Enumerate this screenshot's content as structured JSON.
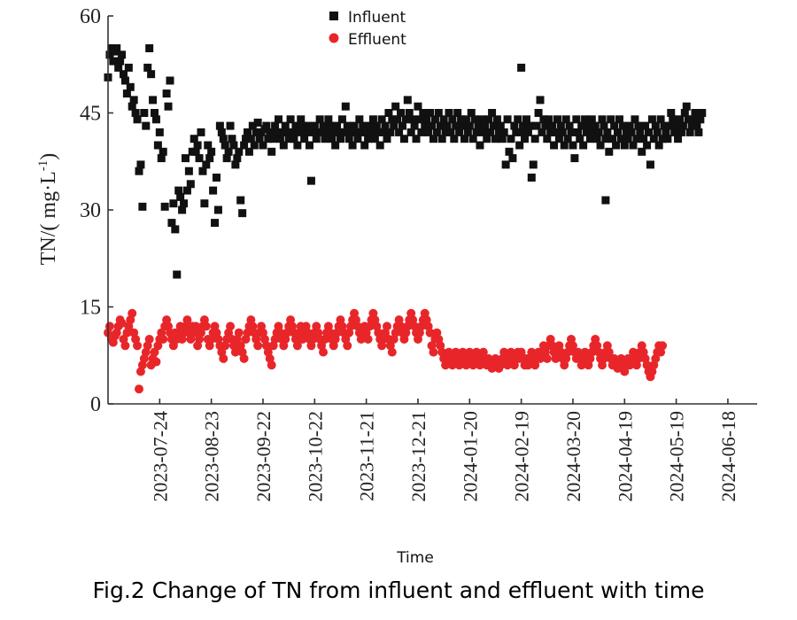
{
  "chart_data": {
    "type": "scatter",
    "title": "",
    "caption": "Fig.2 Change of TN from influent and effluent with time",
    "xlabel": "Time",
    "ylabel_main": "TN/( mg·L",
    "ylabel_exp": "-1",
    "ylabel_close": ")",
    "ylim": [
      0,
      60
    ],
    "yticks": [
      0,
      15,
      30,
      45,
      60
    ],
    "x_start": "2023-06-24",
    "x_end": "2024-07-05",
    "xticks": [
      "2023-07-24",
      "2023-08-23",
      "2023-09-22",
      "2023-10-22",
      "2023-11-21",
      "2023-12-21",
      "2024-01-20",
      "2024-02-19",
      "2024-03-20",
      "2024-04-19",
      "2024-05-19",
      "2024-06-18"
    ],
    "legend_position": "top-center",
    "colors": {
      "influent": "#111111",
      "effluent": "#e8262a",
      "axis": "#333333"
    },
    "series": [
      {
        "name": "Influent",
        "marker": "square",
        "segments": [
          {
            "start": 0,
            "values": [
              50.5,
              54,
              55,
              53,
              54.5,
              55,
              52,
              53,
              54,
              51,
              50,
              48,
              52,
              49,
              46,
              47,
              45,
              44,
              36,
              37,
              30.5,
              45,
              43,
              52,
              55,
              51,
              47,
              45,
              44,
              40,
              42,
              38,
              39,
              30.5,
              48,
              46,
              50,
              28,
              31,
              27,
              20,
              33,
              32,
              30,
              31,
              38,
              33,
              36,
              34,
              39,
              41,
              39,
              40,
              38,
              42,
              36,
              31,
              37,
              40,
              38,
              39,
              33,
              28,
              35,
              30,
              43,
              42,
              41,
              40,
              38,
              39,
              43,
              41,
              40,
              37
            ]
          },
          {
            "start": 75,
            "values": [
              38,
              39,
              31.5,
              29.5,
              40,
              41,
              42,
              39,
              41,
              43,
              40,
              42,
              43.5,
              41,
              42,
              40,
              42.5,
              43,
              41,
              42,
              39,
              41,
              43,
              42,
              44,
              41,
              42,
              40,
              43,
              42,
              41,
              44,
              42,
              41,
              43,
              40,
              42,
              44,
              43,
              41,
              42,
              43,
              40,
              34.5,
              42,
              43,
              41,
              42,
              44,
              42,
              43,
              41,
              42,
              44,
              43,
              41,
              42,
              40,
              43,
              42,
              41,
              44,
              42,
              46,
              43,
              41,
              42,
              40,
              43,
              42,
              41,
              44,
              42,
              43,
              40,
              42,
              41,
              43,
              42,
              44,
              41,
              43,
              42,
              40,
              44,
              42,
              43,
              41,
              45,
              42,
              44,
              43,
              46,
              44,
              42,
              45,
              43,
              41,
              44,
              47,
              45,
              42,
              44,
              43,
              41,
              46,
              44,
              42,
              45,
              43,
              44,
              42,
              45,
              43,
              41,
              44,
              42,
              45,
              43,
              41,
              44,
              42,
              43,
              45,
              42,
              44,
              41,
              43,
              45,
              42,
              44,
              43,
              41,
              44,
              42,
              43,
              45,
              41,
              44,
              42,
              43,
              40,
              44,
              42,
              43,
              41,
              44,
              42,
              45,
              43,
              41,
              44,
              42,
              43,
              41,
              42,
              37,
              44,
              39,
              41,
              38,
              43,
              42,
              44,
              40,
              42,
              43,
              41,
              44,
              42,
              43,
              35,
              37,
              41,
              43,
              45,
              47,
              42,
              44,
              43,
              41,
              44,
              42,
              43,
              40,
              42,
              44,
              41,
              43,
              42,
              40,
              44,
              41,
              43,
              42,
              40,
              38,
              44,
              42,
              41,
              43,
              40,
              44,
              42,
              43,
              41,
              44,
              42,
              43,
              41,
              42,
              40,
              44,
              43,
              41,
              42,
              39,
              44,
              41,
              43,
              40,
              42,
              44,
              41,
              43,
              40,
              42,
              41,
              43,
              42,
              40,
              44,
              41,
              43,
              42,
              39,
              41,
              43,
              40,
              42,
              37,
              44,
              41,
              43,
              42,
              40,
              44,
              41,
              43,
              42,
              41,
              43,
              45,
              44,
              42,
              43,
              41,
              44,
              42,
              43,
              45,
              46,
              44,
              42,
              43,
              44,
              45,
              43,
              42,
              44,
              45
            ]
          },
          {
            "start": 240,
            "values": [
              52
            ]
          },
          {
            "start": 289,
            "values": [
              31.5
            ]
          }
        ]
      },
      {
        "name": "Effluent",
        "marker": "circle",
        "segments": [
          {
            "start": 0,
            "values": [
              11,
              12,
              10,
              9.5,
              10.5,
              11,
              12,
              13,
              12.5,
              10,
              9,
              11,
              12,
              13,
              14,
              11,
              10,
              9,
              2.3,
              5,
              6,
              7,
              8,
              9,
              10,
              6,
              7,
              8,
              6.5,
              9,
              10,
              11,
              10,
              12,
              13,
              12,
              11,
              10,
              9,
              11,
              10,
              11,
              12,
              10,
              11,
              12,
              13,
              11,
              10,
              12,
              11,
              12,
              9,
              10,
              11,
              12,
              13,
              12,
              10,
              9,
              10,
              11,
              12,
              11,
              10,
              9,
              8,
              7,
              9,
              10,
              11,
              12,
              10,
              9,
              8,
              10,
              11,
              9,
              8,
              7,
              10,
              11,
              12,
              13,
              12,
              11,
              10,
              9,
              11,
              12,
              11,
              10,
              9,
              8,
              7,
              6,
              9,
              10,
              11,
              12,
              11,
              10,
              9,
              10,
              11,
              12,
              13,
              12,
              11,
              10,
              9,
              11,
              12,
              10,
              11,
              12,
              11,
              10,
              9,
              10,
              11,
              12,
              11,
              10,
              9,
              8,
              10,
              11,
              12,
              11,
              10,
              9,
              10,
              11,
              12,
              13,
              12,
              11,
              10,
              9,
              11,
              12,
              13,
              14,
              13,
              12,
              11,
              10,
              11,
              12,
              11,
              10,
              12,
              13,
              14,
              13,
              12,
              11,
              10,
              9,
              10,
              11,
              12,
              10,
              9,
              8,
              10,
              11,
              12,
              13,
              12,
              11,
              10,
              11,
              12,
              13,
              14,
              13,
              12,
              11,
              10,
              11,
              12,
              13,
              14,
              13,
              12,
              11,
              9,
              8,
              10,
              11,
              10,
              9,
              8,
              7,
              6,
              7,
              8,
              7,
              6,
              7,
              8,
              7,
              6,
              7,
              8,
              7,
              6,
              7,
              8,
              7,
              6,
              7,
              8,
              7,
              6,
              7,
              8,
              7,
              6,
              7,
              6,
              5.5,
              6,
              7,
              6,
              5.5,
              6,
              7,
              8,
              7,
              6,
              7,
              8,
              7,
              6,
              7,
              8,
              7,
              8,
              7,
              6,
              7,
              6,
              7,
              8,
              7,
              6,
              7,
              8,
              7,
              8,
              9,
              8,
              7,
              9,
              10,
              9,
              8,
              7,
              8,
              9,
              8,
              7,
              6,
              7,
              8,
              9,
              10,
              9,
              8,
              7,
              8,
              7,
              6,
              7,
              8,
              7,
              6,
              7,
              8,
              9,
              10,
              9,
              8,
              7,
              6,
              7,
              8,
              9,
              8,
              7,
              6,
              7,
              6,
              5.5,
              6,
              7,
              6,
              5,
              6,
              7,
              6,
              7,
              8,
              7,
              6,
              7,
              8,
              9,
              8,
              7,
              6,
              5,
              4.2,
              5,
              6,
              7,
              8,
              9,
              8,
              9
            ]
          }
        ]
      }
    ]
  }
}
